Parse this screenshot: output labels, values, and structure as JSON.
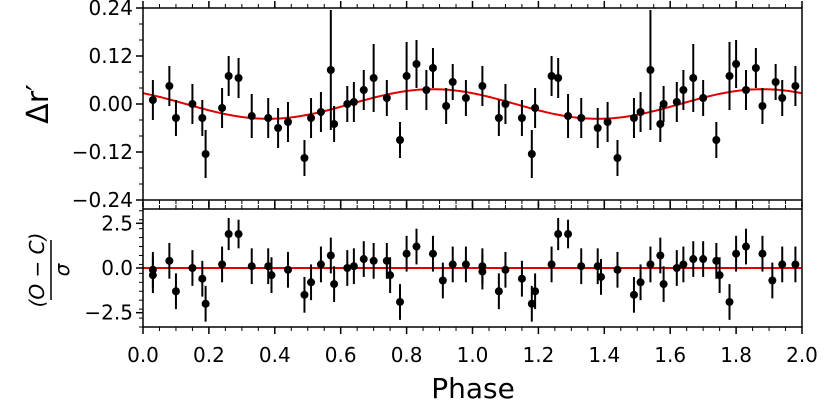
{
  "chart_data": [
    {
      "type": "scatter",
      "panel": "top",
      "ylabel": "Δr′",
      "xlabel": "",
      "xlim": [
        0.0,
        2.0
      ],
      "ylim": [
        -0.24,
        0.24
      ],
      "yticks": [
        "0.24",
        "0.12",
        "0.00",
        "−0.12",
        "−0.24"
      ],
      "ytick_values": [
        0.24,
        0.12,
        0.0,
        -0.12,
        -0.24
      ],
      "grid": false,
      "marker_color": "#000000",
      "model_color": "#e00000",
      "model": {
        "offset": 0.0,
        "amplitude": 0.037,
        "peak_phase": 0.88,
        "period": 1.0
      },
      "series": [
        {
          "x": [
            0.03,
            0.08,
            0.1,
            0.15,
            0.18,
            0.19,
            0.24,
            0.26,
            0.29,
            0.33,
            0.38,
            0.41,
            0.44,
            0.49,
            0.51,
            0.54,
            0.57,
            0.58,
            0.62,
            0.64,
            0.67,
            0.7,
            0.74,
            0.78,
            0.8,
            0.83,
            0.86,
            0.88,
            0.92,
            0.94,
            0.98,
            1.03,
            1.08,
            1.1,
            1.15,
            1.18,
            1.19,
            1.24,
            1.26,
            1.29,
            1.33,
            1.38,
            1.41,
            1.44,
            1.49,
            1.51,
            1.54,
            1.57,
            1.58,
            1.62,
            1.64,
            1.67,
            1.7,
            1.74,
            1.78,
            1.8,
            1.83,
            1.86,
            1.88,
            1.92,
            1.94,
            1.98
          ],
          "y": [
            0.01,
            0.045,
            -0.035,
            0.0,
            -0.035,
            -0.125,
            -0.01,
            0.07,
            0.065,
            -0.03,
            -0.035,
            -0.06,
            -0.045,
            -0.135,
            -0.035,
            -0.02,
            0.085,
            -0.05,
            0.0,
            0.005,
            0.035,
            0.065,
            0.015,
            -0.09,
            0.07,
            0.1,
            0.035,
            0.09,
            -0.005,
            0.055,
            0.015,
            0.045,
            -0.035,
            0.0,
            -0.035,
            -0.125,
            -0.01,
            0.07,
            0.065,
            -0.03,
            -0.035,
            -0.06,
            -0.045,
            -0.135,
            -0.035,
            -0.02,
            0.085,
            -0.05,
            0.0,
            0.005,
            0.035,
            0.065,
            0.015,
            -0.09,
            0.07,
            0.1,
            0.035,
            0.09,
            -0.005,
            0.055,
            0.015,
            0.045
          ],
          "yerr": [
            0.05,
            0.05,
            0.045,
            0.05,
            0.045,
            0.06,
            0.05,
            0.05,
            0.05,
            0.055,
            0.05,
            0.05,
            0.05,
            0.045,
            0.05,
            0.05,
            0.15,
            0.045,
            0.045,
            0.05,
            0.05,
            0.085,
            0.045,
            0.045,
            0.085,
            0.06,
            0.05,
            0.05,
            0.045,
            0.045,
            0.045,
            0.05,
            0.045,
            0.05,
            0.045,
            0.06,
            0.05,
            0.05,
            0.05,
            0.055,
            0.05,
            0.05,
            0.05,
            0.045,
            0.05,
            0.05,
            0.15,
            0.045,
            0.045,
            0.05,
            0.05,
            0.085,
            0.045,
            0.045,
            0.085,
            0.06,
            0.05,
            0.05,
            0.045,
            0.045,
            0.045,
            0.05
          ]
        }
      ]
    },
    {
      "type": "scatter",
      "panel": "bottom",
      "ylabel": "(O − C) / σ",
      "xlabel": "Phase",
      "xlim": [
        0.0,
        2.0
      ],
      "ylim": [
        -3.3,
        3.3
      ],
      "yticks": [
        "2.5",
        "0.0",
        "−2.5"
      ],
      "ytick_values": [
        2.5,
        0.0,
        -2.5
      ],
      "xticks": [
        "0.0",
        "0.2",
        "0.4",
        "0.6",
        "0.8",
        "1.0",
        "1.2",
        "1.4",
        "1.6",
        "1.8",
        "2.0"
      ],
      "xtick_values": [
        0.0,
        0.2,
        0.4,
        0.6,
        0.8,
        1.0,
        1.2,
        1.4,
        1.6,
        1.8,
        2.0
      ],
      "grid": false,
      "zero_line_color": "#e00000",
      "series": [
        {
          "x": [
            0.03,
            0.03,
            0.08,
            0.1,
            0.15,
            0.18,
            0.19,
            0.24,
            0.26,
            0.29,
            0.33,
            0.38,
            0.39,
            0.44,
            0.49,
            0.51,
            0.54,
            0.57,
            0.58,
            0.62,
            0.64,
            0.67,
            0.7,
            0.74,
            0.75,
            0.78,
            0.8,
            0.83,
            0.88,
            0.91,
            0.94,
            0.98,
            1.03,
            1.03,
            1.08,
            1.1,
            1.15,
            1.18,
            1.19,
            1.24,
            1.26,
            1.29,
            1.33,
            1.38,
            1.39,
            1.44,
            1.49,
            1.51,
            1.54,
            1.57,
            1.58,
            1.62,
            1.64,
            1.67,
            1.7,
            1.74,
            1.75,
            1.78,
            1.8,
            1.83,
            1.88,
            1.91,
            1.94,
            1.98
          ],
          "y": [
            -0.1,
            -0.4,
            0.4,
            -1.3,
            0.0,
            -0.6,
            -2.0,
            0.2,
            1.9,
            1.9,
            0.1,
            0.1,
            -0.4,
            -0.1,
            -1.5,
            -0.8,
            0.2,
            0.7,
            -0.9,
            0.0,
            0.1,
            0.5,
            0.4,
            0.4,
            -0.4,
            -1.9,
            0.8,
            1.2,
            0.8,
            -0.7,
            0.2,
            0.2,
            0.1,
            -0.2,
            -1.3,
            -0.1,
            -0.6,
            -2.0,
            -1.3,
            0.2,
            1.9,
            1.9,
            0.1,
            0.1,
            -0.5,
            -0.1,
            -1.5,
            -0.8,
            0.2,
            0.7,
            -0.9,
            0.0,
            0.2,
            0.5,
            0.5,
            0.4,
            -0.4,
            -1.9,
            0.8,
            1.2,
            0.8,
            -0.7,
            0.2,
            0.2
          ],
          "yerr": [
            1.0,
            1.0,
            1.0,
            1.0,
            1.0,
            1.0,
            1.0,
            1.0,
            0.9,
            0.8,
            1.0,
            1.0,
            1.0,
            1.0,
            1.0,
            1.0,
            1.0,
            1.0,
            1.0,
            1.0,
            1.0,
            1.0,
            1.0,
            1.0,
            1.0,
            1.0,
            1.0,
            1.0,
            1.0,
            1.0,
            1.0,
            1.0,
            1.0,
            1.0,
            1.0,
            1.0,
            1.0,
            1.0,
            1.0,
            1.0,
            0.9,
            0.8,
            1.0,
            1.0,
            1.0,
            1.0,
            1.0,
            1.0,
            1.0,
            1.0,
            1.0,
            1.0,
            1.0,
            1.0,
            1.0,
            1.0,
            1.0,
            1.0,
            1.0,
            1.0,
            1.0,
            1.0,
            1.0,
            1.0
          ]
        }
      ]
    }
  ]
}
